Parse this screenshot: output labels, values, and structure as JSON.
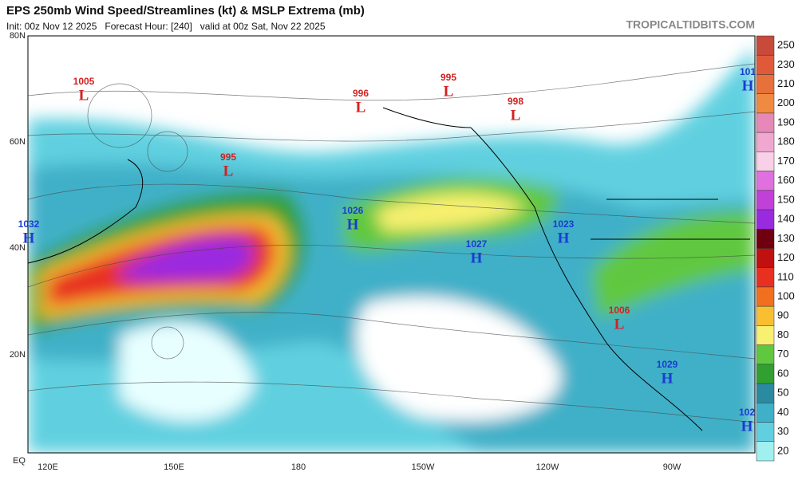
{
  "header": {
    "title": "EPS 250mb Wind Speed/Streamlines (kt) & MSLP Extrema (mb)",
    "subtitle": "Init: 00z Nov 12 2025   Forecast Hour: [240]   valid at 00z Sat, Nov 22 2025",
    "site": "TROPICALTIDBITS.COM"
  },
  "map": {
    "lat_labels": [
      "80N",
      "60N",
      "40N",
      "20N",
      "EQ"
    ],
    "lon_labels": [
      "120E",
      "150E",
      "180",
      "150W",
      "120W",
      "90W"
    ],
    "pressure_centers": [
      {
        "symbol": "L",
        "value": 1005
      },
      {
        "symbol": "L",
        "value": 996
      },
      {
        "symbol": "L",
        "value": 995
      },
      {
        "symbol": "L",
        "value": 998
      },
      {
        "symbol": "L",
        "value": 995
      },
      {
        "symbol": "H",
        "value": 1032
      },
      {
        "symbol": "H",
        "value": 1026
      },
      {
        "symbol": "H",
        "value": 1027
      },
      {
        "symbol": "H",
        "value": 1023
      },
      {
        "symbol": "L",
        "value": 1006
      },
      {
        "symbol": "H",
        "value": 1029
      },
      {
        "symbol": "H",
        "value": 101
      },
      {
        "symbol": "H",
        "value": 102
      }
    ]
  },
  "colorbar": {
    "levels": [
      {
        "label": 250,
        "color": "#c84a3a"
      },
      {
        "label": 230,
        "color": "#e05a3a"
      },
      {
        "label": 210,
        "color": "#e8703a"
      },
      {
        "label": 200,
        "color": "#f08a40"
      },
      {
        "label": 190,
        "color": "#e888b8"
      },
      {
        "label": 180,
        "color": "#f0a8d0"
      },
      {
        "label": 170,
        "color": "#f8d0e8"
      },
      {
        "label": 160,
        "color": "#e070e0"
      },
      {
        "label": 150,
        "color": "#c040d8"
      },
      {
        "label": 140,
        "color": "#9a2ae0"
      },
      {
        "label": 130,
        "color": "#700010"
      },
      {
        "label": 120,
        "color": "#c01010"
      },
      {
        "label": 110,
        "color": "#e83020"
      },
      {
        "label": 100,
        "color": "#f07020"
      },
      {
        "label": 90,
        "color": "#f8c030"
      },
      {
        "label": 80,
        "color": "#f8f070"
      },
      {
        "label": 70,
        "color": "#60c840"
      },
      {
        "label": 60,
        "color": "#30a030"
      },
      {
        "label": 50,
        "color": "#2a8aa0"
      },
      {
        "label": 40,
        "color": "#40b0c8"
      },
      {
        "label": 30,
        "color": "#60d0e0"
      },
      {
        "label": 20,
        "color": "#a0f0f0"
      }
    ]
  }
}
